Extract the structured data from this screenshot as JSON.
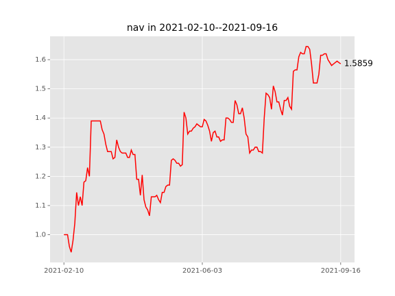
{
  "chart_data": {
    "type": "line",
    "title": "nav in 2021-02-10--2021-09-16",
    "categories": [
      "2021-02-10",
      null,
      null,
      null,
      null,
      null,
      null,
      null,
      null,
      null,
      null,
      null,
      null,
      null,
      null,
      null,
      null,
      null,
      null,
      null,
      null,
      null,
      null,
      null,
      null,
      null,
      null,
      null,
      null,
      null,
      null,
      null,
      null,
      null,
      null,
      null,
      null,
      null,
      null,
      null,
      null,
      null,
      null,
      null,
      null,
      null,
      null,
      null,
      null,
      null,
      null,
      null,
      null,
      null,
      null,
      null,
      null,
      null,
      null,
      null,
      null,
      null,
      null,
      null,
      null,
      null,
      null,
      null,
      null,
      null,
      null,
      null,
      null,
      null,
      null,
      null,
      "2021-06-03",
      null,
      null,
      null,
      null,
      null,
      null,
      null,
      null,
      null,
      null,
      null,
      null,
      null,
      null,
      null,
      null,
      null,
      null,
      null,
      null,
      null,
      null,
      null,
      null,
      null,
      null,
      null,
      null,
      null,
      null,
      null,
      null,
      null,
      null,
      null,
      null,
      null,
      null,
      null,
      null,
      null,
      null,
      null,
      null,
      null,
      null,
      null,
      null,
      null,
      null,
      null,
      null,
      null,
      null,
      null,
      null,
      null,
      null,
      null,
      null,
      null,
      null,
      null,
      null,
      null,
      null,
      null,
      null,
      null,
      null,
      null,
      null,
      null,
      null,
      null,
      "2021-09-16"
    ],
    "values": [
      1.0,
      1.0,
      1.0,
      0.96,
      0.94,
      0.98,
      1.04,
      1.145,
      1.1,
      1.13,
      1.1,
      1.18,
      1.185,
      1.23,
      1.2,
      1.39,
      1.39,
      1.39,
      1.39,
      1.39,
      1.39,
      1.36,
      1.345,
      1.31,
      1.285,
      1.285,
      1.285,
      1.26,
      1.265,
      1.325,
      1.3,
      1.285,
      1.28,
      1.28,
      1.28,
      1.265,
      1.265,
      1.29,
      1.275,
      1.275,
      1.19,
      1.19,
      1.135,
      1.205,
      1.12,
      1.095,
      1.085,
      1.065,
      1.13,
      1.13,
      1.13,
      1.135,
      1.12,
      1.11,
      1.145,
      1.145,
      1.165,
      1.17,
      1.17,
      1.255,
      1.26,
      1.255,
      1.245,
      1.245,
      1.235,
      1.24,
      1.42,
      1.4,
      1.345,
      1.355,
      1.355,
      1.365,
      1.37,
      1.38,
      1.375,
      1.37,
      1.37,
      1.395,
      1.39,
      1.375,
      1.355,
      1.32,
      1.35,
      1.355,
      1.335,
      1.335,
      1.32,
      1.325,
      1.325,
      1.4,
      1.4,
      1.395,
      1.385,
      1.385,
      1.46,
      1.445,
      1.415,
      1.415,
      1.435,
      1.4,
      1.345,
      1.335,
      1.28,
      1.29,
      1.29,
      1.3,
      1.3,
      1.285,
      1.285,
      1.28,
      1.4,
      1.485,
      1.48,
      1.47,
      1.43,
      1.51,
      1.49,
      1.455,
      1.455,
      1.43,
      1.41,
      1.46,
      1.46,
      1.47,
      1.44,
      1.43,
      1.56,
      1.565,
      1.565,
      1.61,
      1.625,
      1.62,
      1.62,
      1.645,
      1.645,
      1.635,
      1.585,
      1.52,
      1.52,
      1.52,
      1.55,
      1.615,
      1.615,
      1.62,
      1.62,
      1.6,
      1.59,
      1.58,
      1.585,
      1.59,
      1.595,
      1.59,
      1.5859
    ],
    "last_value_label": "1.5859",
    "color": "#ff0000",
    "xlim": [
      -7.6,
      159.6
    ],
    "ylim": [
      0.905,
      1.68
    ],
    "yticks": [
      {
        "value": 1,
        "label": "1.0"
      },
      1.1,
      1.2,
      1.3,
      1.4,
      1.5,
      1.6
    ],
    "grid": true
  }
}
